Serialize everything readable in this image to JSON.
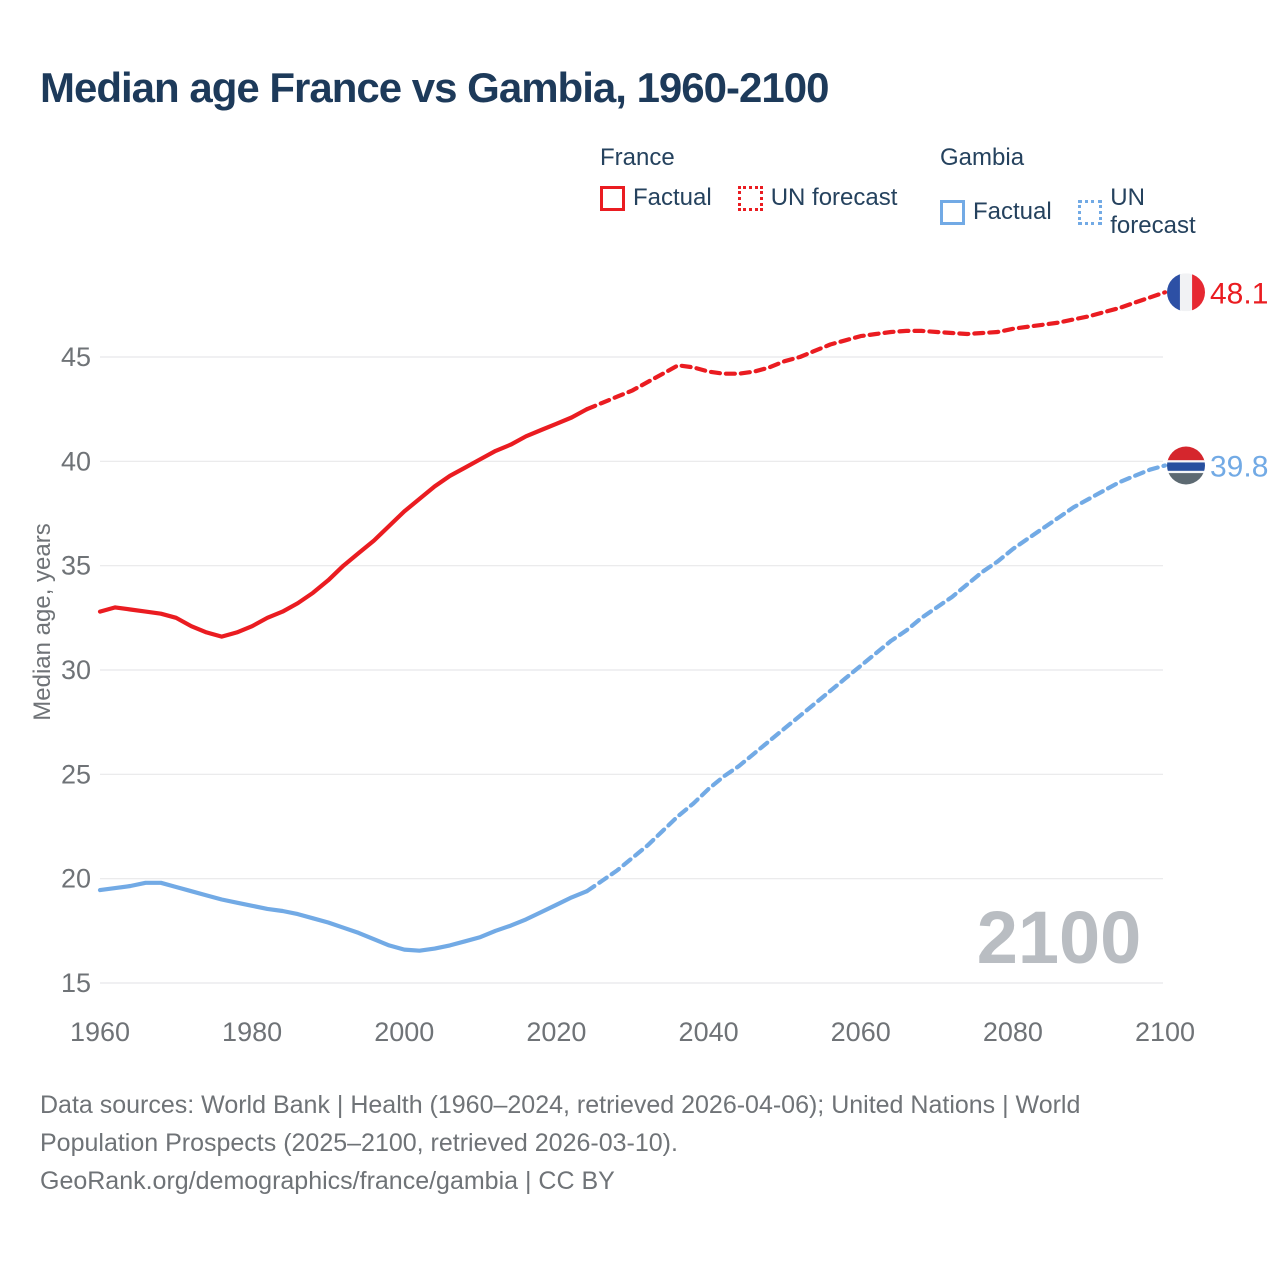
{
  "title": "Median age France vs Gambia, 1960-2100",
  "legend": {
    "groups": [
      {
        "name": "France",
        "color": "#ea1c21",
        "items": [
          {
            "label": "Factual",
            "style": "solid"
          },
          {
            "label": "UN forecast",
            "style": "dashed"
          }
        ]
      },
      {
        "name": "Gambia",
        "color": "#72aae5",
        "items": [
          {
            "label": "Factual",
            "style": "solid"
          },
          {
            "label": "UN forecast",
            "style": "dashed"
          }
        ]
      }
    ]
  },
  "chart_data": {
    "type": "line",
    "title": "Median age France vs Gambia, 1960-2100",
    "xlabel": "",
    "ylabel": "Median age, years",
    "watermark": "2100",
    "xlim": [
      1960,
      2100
    ],
    "ylim": [
      15,
      45
    ],
    "xticks": [
      1960,
      1980,
      2000,
      2020,
      2040,
      2060,
      2080,
      2100
    ],
    "yticks": [
      15,
      20,
      25,
      30,
      35,
      40,
      45
    ],
    "grid": "horizontal",
    "legend_position": "top-right",
    "series": [
      {
        "name": "France factual",
        "color": "#ea1c21",
        "style": "solid",
        "points": [
          [
            1960,
            32.8
          ],
          [
            1962,
            33.0
          ],
          [
            1964,
            32.9
          ],
          [
            1966,
            32.8
          ],
          [
            1968,
            32.7
          ],
          [
            1970,
            32.5
          ],
          [
            1972,
            32.1
          ],
          [
            1974,
            31.8
          ],
          [
            1976,
            31.6
          ],
          [
            1978,
            31.8
          ],
          [
            1980,
            32.1
          ],
          [
            1982,
            32.5
          ],
          [
            1984,
            32.8
          ],
          [
            1986,
            33.2
          ],
          [
            1988,
            33.7
          ],
          [
            1990,
            34.3
          ],
          [
            1992,
            35.0
          ],
          [
            1994,
            35.6
          ],
          [
            1996,
            36.2
          ],
          [
            1998,
            36.9
          ],
          [
            2000,
            37.6
          ],
          [
            2002,
            38.2
          ],
          [
            2004,
            38.8
          ],
          [
            2006,
            39.3
          ],
          [
            2008,
            39.7
          ],
          [
            2010,
            40.1
          ],
          [
            2012,
            40.5
          ],
          [
            2014,
            40.8
          ],
          [
            2016,
            41.2
          ],
          [
            2018,
            41.5
          ],
          [
            2020,
            41.8
          ],
          [
            2022,
            42.1
          ],
          [
            2024,
            42.5
          ]
        ]
      },
      {
        "name": "France UN forecast",
        "color": "#ea1c21",
        "style": "dashed",
        "points": [
          [
            2024,
            42.5
          ],
          [
            2026,
            42.8
          ],
          [
            2028,
            43.1
          ],
          [
            2030,
            43.4
          ],
          [
            2032,
            43.8
          ],
          [
            2034,
            44.2
          ],
          [
            2036,
            44.6
          ],
          [
            2038,
            44.5
          ],
          [
            2040,
            44.3
          ],
          [
            2042,
            44.2
          ],
          [
            2044,
            44.2
          ],
          [
            2046,
            44.3
          ],
          [
            2048,
            44.5
          ],
          [
            2050,
            44.8
          ],
          [
            2052,
            45.0
          ],
          [
            2054,
            45.3
          ],
          [
            2056,
            45.6
          ],
          [
            2058,
            45.8
          ],
          [
            2060,
            46.0
          ],
          [
            2062,
            46.1
          ],
          [
            2064,
            46.2
          ],
          [
            2066,
            46.25
          ],
          [
            2068,
            46.25
          ],
          [
            2070,
            46.2
          ],
          [
            2072,
            46.15
          ],
          [
            2074,
            46.1
          ],
          [
            2076,
            46.15
          ],
          [
            2078,
            46.2
          ],
          [
            2080,
            46.35
          ],
          [
            2082,
            46.45
          ],
          [
            2084,
            46.55
          ],
          [
            2086,
            46.65
          ],
          [
            2088,
            46.8
          ],
          [
            2090,
            46.95
          ],
          [
            2092,
            47.15
          ],
          [
            2094,
            47.35
          ],
          [
            2096,
            47.6
          ],
          [
            2098,
            47.85
          ],
          [
            2100,
            48.1
          ]
        ]
      },
      {
        "name": "Gambia factual",
        "color": "#72aae5",
        "style": "solid",
        "points": [
          [
            1960,
            19.45
          ],
          [
            1962,
            19.55
          ],
          [
            1964,
            19.65
          ],
          [
            1966,
            19.8
          ],
          [
            1968,
            19.8
          ],
          [
            1970,
            19.6
          ],
          [
            1972,
            19.4
          ],
          [
            1974,
            19.2
          ],
          [
            1976,
            19.0
          ],
          [
            1978,
            18.85
          ],
          [
            1980,
            18.7
          ],
          [
            1982,
            18.55
          ],
          [
            1984,
            18.45
          ],
          [
            1986,
            18.3
          ],
          [
            1988,
            18.1
          ],
          [
            1990,
            17.9
          ],
          [
            1992,
            17.65
          ],
          [
            1994,
            17.4
          ],
          [
            1996,
            17.1
          ],
          [
            1998,
            16.8
          ],
          [
            2000,
            16.6
          ],
          [
            2002,
            16.55
          ],
          [
            2004,
            16.65
          ],
          [
            2006,
            16.8
          ],
          [
            2008,
            17.0
          ],
          [
            2010,
            17.2
          ],
          [
            2012,
            17.5
          ],
          [
            2014,
            17.75
          ],
          [
            2016,
            18.05
          ],
          [
            2018,
            18.4
          ],
          [
            2020,
            18.75
          ],
          [
            2022,
            19.1
          ],
          [
            2024,
            19.4
          ]
        ]
      },
      {
        "name": "Gambia UN forecast",
        "color": "#72aae5",
        "style": "dashed",
        "points": [
          [
            2024,
            19.4
          ],
          [
            2026,
            19.9
          ],
          [
            2028,
            20.4
          ],
          [
            2030,
            21.0
          ],
          [
            2032,
            21.6
          ],
          [
            2034,
            22.3
          ],
          [
            2036,
            23.0
          ],
          [
            2038,
            23.6
          ],
          [
            2040,
            24.3
          ],
          [
            2042,
            24.9
          ],
          [
            2044,
            25.4
          ],
          [
            2046,
            26.0
          ],
          [
            2048,
            26.6
          ],
          [
            2050,
            27.2
          ],
          [
            2052,
            27.8
          ],
          [
            2054,
            28.4
          ],
          [
            2056,
            29.0
          ],
          [
            2058,
            29.6
          ],
          [
            2060,
            30.2
          ],
          [
            2062,
            30.8
          ],
          [
            2064,
            31.4
          ],
          [
            2066,
            31.9
          ],
          [
            2068,
            32.5
          ],
          [
            2070,
            33.0
          ],
          [
            2072,
            33.5
          ],
          [
            2074,
            34.1
          ],
          [
            2076,
            34.7
          ],
          [
            2078,
            35.2
          ],
          [
            2080,
            35.8
          ],
          [
            2082,
            36.3
          ],
          [
            2084,
            36.8
          ],
          [
            2086,
            37.3
          ],
          [
            2088,
            37.8
          ],
          [
            2090,
            38.2
          ],
          [
            2092,
            38.6
          ],
          [
            2094,
            39.0
          ],
          [
            2096,
            39.3
          ],
          [
            2098,
            39.6
          ],
          [
            2100,
            39.8
          ]
        ]
      }
    ],
    "end_labels": [
      {
        "flag": "france",
        "value": "48.1",
        "color": "#ea1c21",
        "series_index": 1,
        "flag_stripes": {
          "orientation": "vertical",
          "stripes": [
            {
              "color": "#2d50a5",
              "frac": 0.34
            },
            {
              "color": "#f1f2f4",
              "frac": 0.32
            },
            {
              "color": "#e62832",
              "frac": 0.34
            }
          ]
        }
      },
      {
        "flag": "gambia",
        "value": "39.8",
        "color": "#72aae5",
        "series_index": 3,
        "flag_stripes": {
          "orientation": "horizontal",
          "stripes": [
            {
              "color": "#d5262d",
              "frac": 0.36
            },
            {
              "color": "#f4f6f8",
              "frac": 0.06
            },
            {
              "color": "#27509f",
              "frac": 0.22
            },
            {
              "color": "#f4f6f8",
              "frac": 0.06
            },
            {
              "color": "#5d6a72",
              "frac": 0.3
            }
          ]
        }
      }
    ]
  },
  "footer": {
    "lines": [
      "Data sources: World Bank | Health (1960–2024, retrieved 2026-04-06); United Nations | World",
      "Population Prospects (2025–2100, retrieved 2026-03-10).",
      "GeoRank.org/demographics/france/gambia | CC BY"
    ]
  }
}
